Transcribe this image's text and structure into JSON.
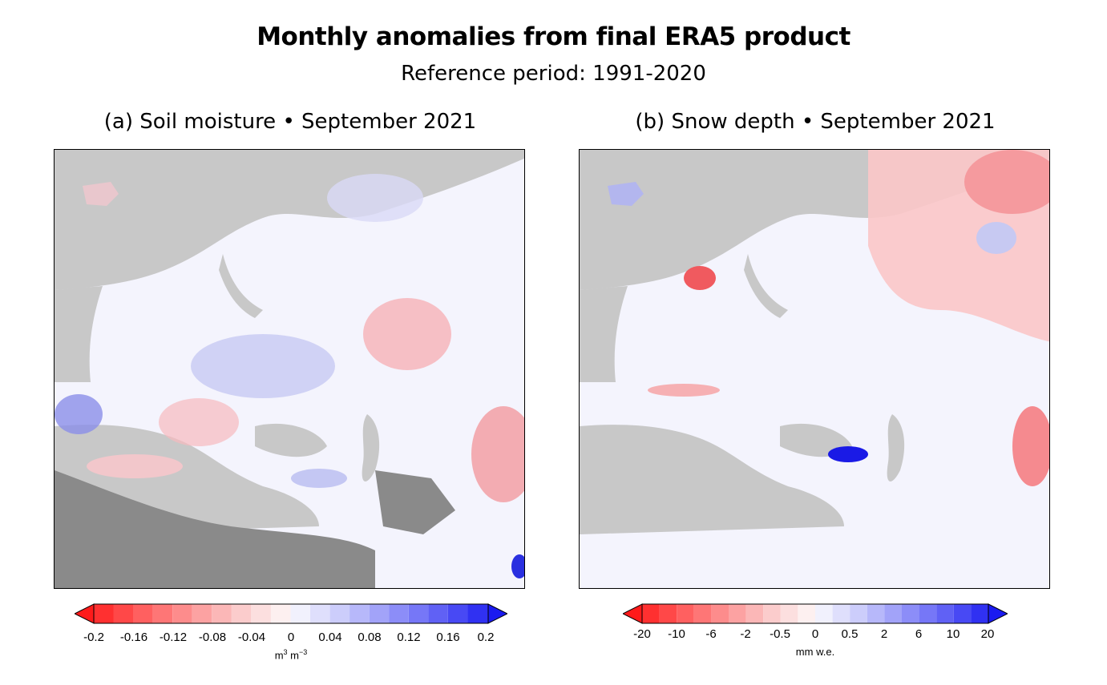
{
  "title": "Monthly anomalies from final ERA5 product",
  "subtitle": "Reference period: 1991-2020",
  "panels": [
    {
      "id": "a",
      "title": "(a) Soil moisture • September 2021",
      "variable": "Soil moisture",
      "colorbar": {
        "ticks": [
          "-0.2",
          "-0.16",
          "-0.12",
          "-0.08",
          "-0.04",
          "0",
          "0.04",
          "0.08",
          "0.12",
          "0.16",
          "0.2"
        ],
        "unit_base": "m",
        "unit_sup1": "3",
        "unit_mid": " m",
        "unit_sup2": "−3",
        "negative_color": "#ff0000",
        "positive_color": "#0000ff"
      }
    },
    {
      "id": "b",
      "title": "(b) Snow depth • September 2021",
      "variable": "Snow depth",
      "colorbar": {
        "ticks": [
          "-20",
          "-10",
          "-6",
          "-2",
          "-0.5",
          "0",
          "0.5",
          "2",
          "6",
          "10",
          "20"
        ],
        "unit": "mm w.e.",
        "negative_color": "#ff0000",
        "positive_color": "#0000ff"
      }
    }
  ],
  "colors": {
    "land_gray": "#c8c8c8",
    "no_data_gray": "#8a8a8a",
    "neutral": "#f4f4fd"
  }
}
